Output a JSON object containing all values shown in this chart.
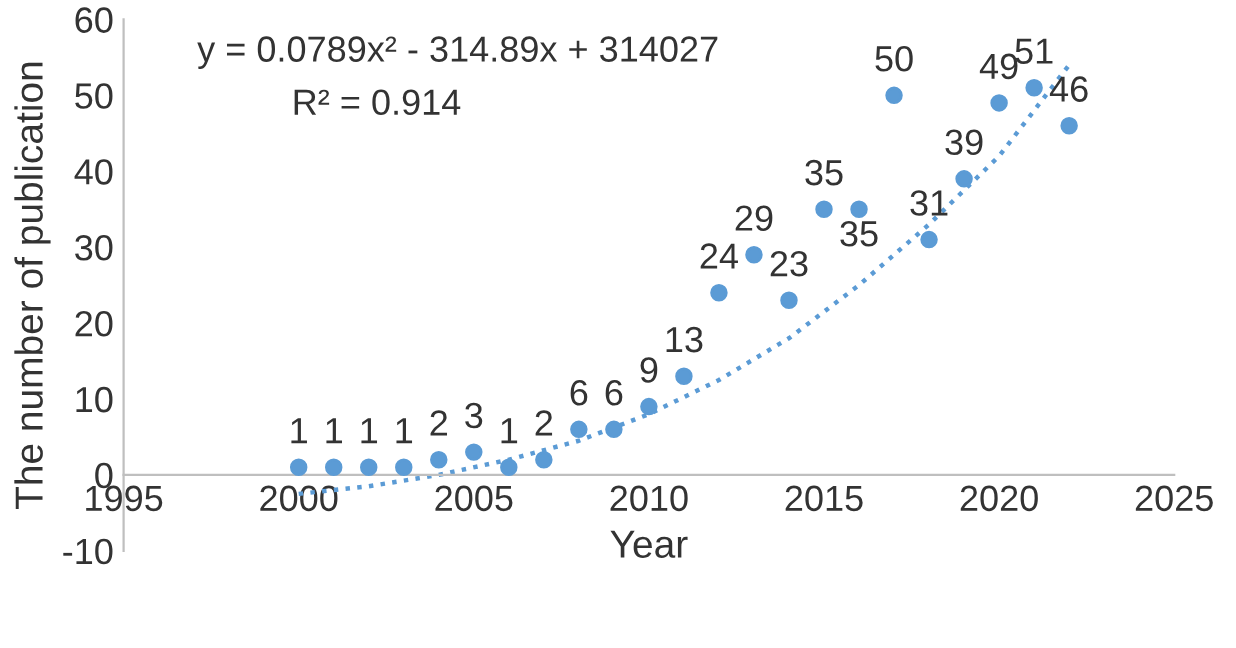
{
  "chart_data": {
    "type": "scatter",
    "xlabel": "Year",
    "ylabel": "The number of publication",
    "annotations": [
      "y = 0.0789x² - 314.89x + 314027",
      "R² = 0.914"
    ],
    "xlim": [
      1995,
      2025
    ],
    "xticks": [
      1995,
      2000,
      2005,
      2010,
      2015,
      2020,
      2025
    ],
    "ylim": [
      -10,
      60
    ],
    "yticks": [
      -10,
      0,
      10,
      20,
      30,
      40,
      50,
      60
    ],
    "grid": false,
    "series": [
      {
        "color": "#5b9bd5",
        "marker": "circle",
        "x": [
          2000,
          2001,
          2002,
          2003,
          2004,
          2005,
          2006,
          2007,
          2008,
          2009,
          2010,
          2011,
          2012,
          2013,
          2014,
          2015,
          2016,
          2017,
          2018,
          2019,
          2020,
          2021,
          2022
        ],
        "values": [
          1,
          1,
          1,
          1,
          2,
          3,
          1,
          2,
          6,
          6,
          9,
          13,
          24,
          29,
          23,
          35,
          35,
          50,
          31,
          39,
          49,
          51,
          46
        ],
        "value_labels": [
          "1",
          "1",
          "1",
          "1",
          "2",
          "3",
          "1",
          "2",
          "6",
          "6",
          "9",
          "13",
          "24",
          "29",
          "23",
          "35",
          "35",
          "50",
          "31",
          "39",
          "49",
          "51",
          "46"
        ]
      },
      {
        "type": "line",
        "color": "#5b9bd5",
        "marker": "none",
        "line_style": "dotted",
        "x": [
          2000,
          2002,
          2004,
          2006,
          2008,
          2010,
          2012,
          2014,
          2016,
          2018,
          2020,
          2022
        ],
        "values": [
          -2.5,
          -1.5,
          0,
          2,
          4.5,
          8,
          12.5,
          18,
          25,
          33,
          42,
          54
        ]
      }
    ]
  }
}
